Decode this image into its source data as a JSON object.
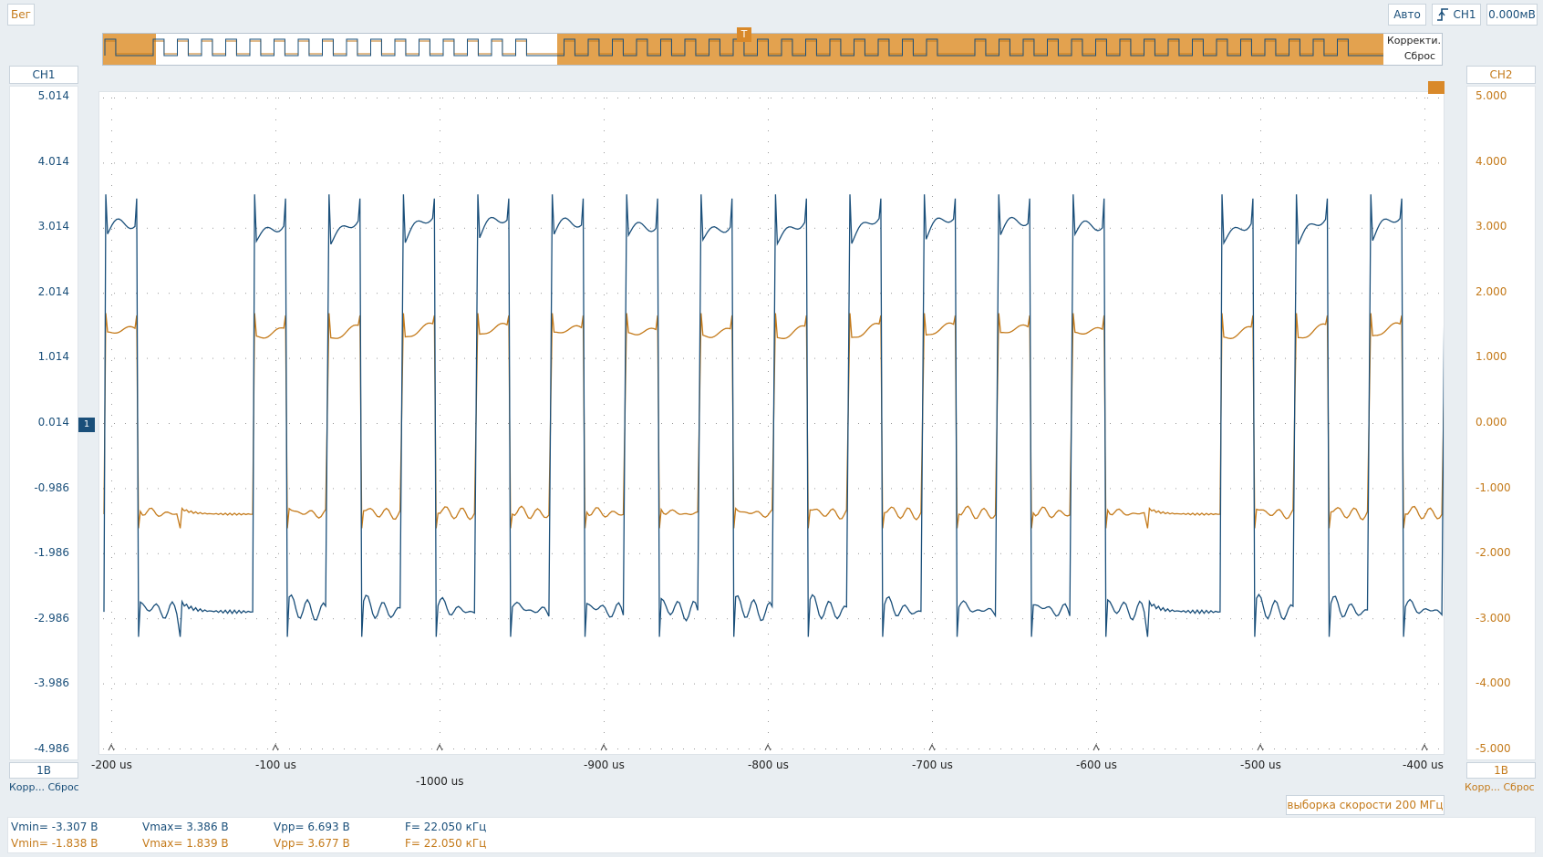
{
  "toolbar": {
    "run_state": "Бег",
    "trigger_mode": "Авто",
    "trigger_source": "CH1",
    "trigger_level": "0.000мВ"
  },
  "overview": {
    "correct_label": "Корректи...",
    "reset_label": "Сброс",
    "trigger_marker": "T"
  },
  "ch1": {
    "label": "CH1",
    "scale": "1В",
    "correct_label": "Корр...",
    "reset_label": "Сброс",
    "color": "#1a4f7a",
    "ticks": [
      "5.014",
      "4.014",
      "3.014",
      "2.014",
      "1.014",
      "0.014",
      "-0.986",
      "-1.986",
      "-2.986",
      "-3.986",
      "-4.986"
    ]
  },
  "ch2": {
    "label": "CH2",
    "scale": "1В",
    "correct_label": "Корр...",
    "reset_label": "Сброс",
    "color": "#c47a1a",
    "ticks": [
      "5.000",
      "4.000",
      "3.000",
      "2.000",
      "1.000",
      "0.000",
      "-1.000",
      "-2.000",
      "-3.000",
      "-4.000",
      "-5.000"
    ]
  },
  "xaxis": {
    "labels": [
      "-200 us",
      "-100 us",
      "-1000 us",
      "-900 us",
      "-800 us",
      "-700 us",
      "-600 us",
      "-500 us",
      "-400 us"
    ],
    "offset_label": "-1000 us"
  },
  "sample_rate": "выборка скорости 200 МГц",
  "measurements": {
    "ch1": {
      "vmin": "Vmin= -3.307 В",
      "vmax": "Vmax= 3.386 В",
      "vpp": "Vpp= 6.693 В",
      "freq": "F= 22.050 кГц"
    },
    "ch2": {
      "vmin": "Vmin= -1.838 В",
      "vmax": "Vmax= 1.839 В",
      "vpp": "Vpp= 3.677 В",
      "freq": "F= 22.050 кГц"
    }
  },
  "chart_data": {
    "type": "line",
    "title": "",
    "xlabel": "",
    "ylabel": "",
    "grid": true,
    "period_us": 45.35,
    "ch1_levels": {
      "high": 3.0,
      "low": -2.9
    },
    "ch2_levels": {
      "high": 1.4,
      "low": -1.4
    },
    "missing_pulses_after_index": [
      1,
      14
    ],
    "series": [
      {
        "name": "CH1",
        "description": "square wave with ringing"
      },
      {
        "name": "CH2",
        "description": "square wave with ringing"
      }
    ]
  }
}
